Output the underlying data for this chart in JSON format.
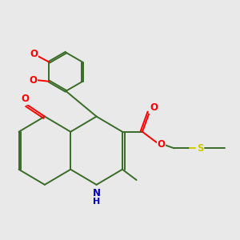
{
  "background_color": "#e9e9e9",
  "bond_color": "#3a6b28",
  "bond_width": 1.4,
  "atom_colors": {
    "O": "#ff0000",
    "N": "#0000bb",
    "S": "#cccc00",
    "C": "#3a6b28"
  },
  "font_size": 8.5
}
